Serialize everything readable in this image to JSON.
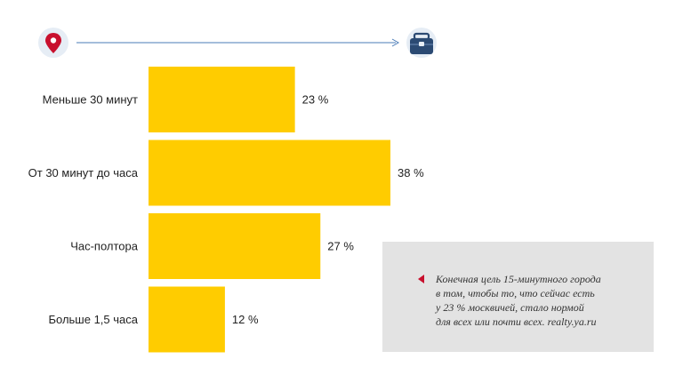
{
  "colors": {
    "bar": "#ffcc00",
    "flow_line": "#4a7bb7",
    "pin_icon": "#c8102e",
    "icon_circle": "#e6edf5",
    "briefcase_icon": "#2b4a73",
    "note_background": "#e3e3e3",
    "note_marker": "#c8102e"
  },
  "icons": {
    "start": "location-pin-icon",
    "end": "briefcase-icon"
  },
  "chart_data": {
    "type": "bar",
    "orientation": "horizontal",
    "categories": [
      "Меньше 30 минут",
      "От 30 минут до часа",
      "Час-полтора",
      "Больше 1,5 часа"
    ],
    "values": [
      23,
      38,
      27,
      12
    ],
    "value_labels": [
      "23 %",
      "38 %",
      "27 %",
      "12 %"
    ],
    "grid": false,
    "legend": "none"
  },
  "note": {
    "lines": [
      "Конечная цель 15-минутного города",
      "в том, чтобы то, что сейчас есть",
      "у 23 % москвичей, стало нормой",
      "для всех или почти всех. realty.ya.ru"
    ]
  }
}
